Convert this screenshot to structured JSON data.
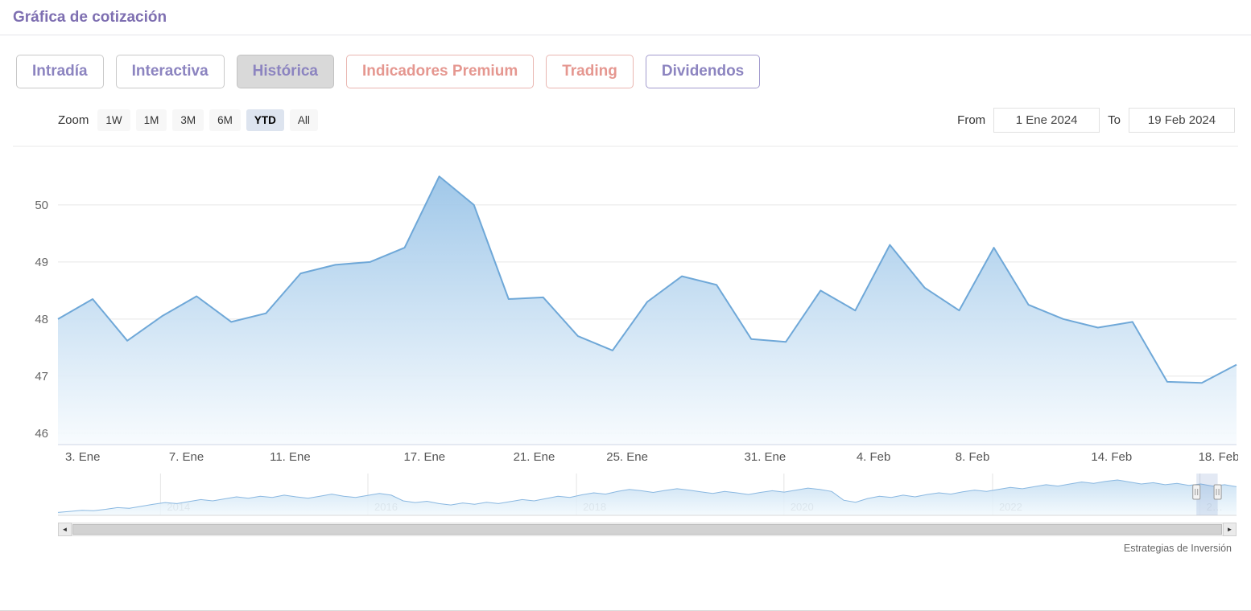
{
  "header": {
    "title": "Gráfica de cotización"
  },
  "tabs": [
    {
      "label": "Intradía",
      "active": false
    },
    {
      "label": "Interactiva",
      "active": false
    },
    {
      "label": "Histórica",
      "active": true
    },
    {
      "label": "Indicadores Premium",
      "active": false
    },
    {
      "label": "Trading",
      "active": false
    },
    {
      "label": "Dividendos",
      "active": false
    }
  ],
  "range_selector": {
    "zoom_label": "Zoom",
    "buttons": [
      {
        "label": "1W",
        "selected": false
      },
      {
        "label": "1M",
        "selected": false
      },
      {
        "label": "3M",
        "selected": false
      },
      {
        "label": "6M",
        "selected": false
      },
      {
        "label": "YTD",
        "selected": true
      },
      {
        "label": "All",
        "selected": false
      }
    ],
    "from_label": "From",
    "from_value": "1 Ene 2024",
    "to_label": "To",
    "to_value": "19 Feb 2024"
  },
  "chart_data": {
    "type": "area",
    "title": "",
    "xlabel": "",
    "ylabel": "",
    "x": [
      "2 Ene",
      "3 Ene",
      "4 Ene",
      "5 Ene",
      "8 Ene",
      "9 Ene",
      "10 Ene",
      "11 Ene",
      "12 Ene",
      "15 Ene",
      "16 Ene",
      "17 Ene",
      "18 Ene",
      "19 Ene",
      "22 Ene",
      "23 Ene",
      "24 Ene",
      "25 Ene",
      "26 Ene",
      "29 Ene",
      "30 Ene",
      "31 Ene",
      "1 Feb",
      "2 Feb",
      "5 Feb",
      "6 Feb",
      "7 Feb",
      "8 Feb",
      "9 Feb",
      "12 Feb",
      "13 Feb",
      "14 Feb",
      "15 Feb",
      "16 Feb",
      "19 Feb"
    ],
    "values": [
      48.0,
      48.35,
      47.62,
      48.05,
      48.4,
      47.95,
      48.1,
      48.8,
      48.95,
      49.0,
      49.25,
      50.5,
      50.0,
      48.35,
      48.38,
      47.7,
      47.45,
      48.3,
      48.75,
      48.6,
      47.65,
      47.6,
      48.5,
      48.15,
      49.3,
      48.55,
      48.15,
      49.25,
      48.25,
      48.0,
      47.85,
      47.95,
      46.9,
      46.88,
      47.2
    ],
    "ylim": [
      45.8,
      50.9
    ],
    "yticks": [
      46,
      47,
      48,
      49,
      50
    ],
    "xticks": [
      {
        "label": "3. Ene",
        "pos": 0.021
      },
      {
        "label": "7. Ene",
        "pos": 0.109
      },
      {
        "label": "11. Ene",
        "pos": 0.197
      },
      {
        "label": "17. Ene",
        "pos": 0.311
      },
      {
        "label": "21. Ene",
        "pos": 0.404
      },
      {
        "label": "25. Ene",
        "pos": 0.483
      },
      {
        "label": "31. Ene",
        "pos": 0.6
      },
      {
        "label": "4. Feb",
        "pos": 0.692
      },
      {
        "label": "8. Feb",
        "pos": 0.776
      },
      {
        "label": "14. Feb",
        "pos": 0.894
      },
      {
        "label": "18. Feb",
        "pos": 0.985
      }
    ],
    "grid": "horizontal-only",
    "legend": "none",
    "line_color": "#6fa8d8",
    "fill_top": "#93c0e6",
    "fill_bottom": "#f7fbfe"
  },
  "navigator_data": {
    "type": "area",
    "years": [
      {
        "label": "2014",
        "pos": 0.087
      },
      {
        "label": "2016",
        "pos": 0.263
      },
      {
        "label": "2018",
        "pos": 0.44
      },
      {
        "label": "2020",
        "pos": 0.616
      },
      {
        "label": "2022",
        "pos": 0.793
      },
      {
        "label": "2…",
        "pos": 0.969
      }
    ],
    "selected_range": [
      0.966,
      0.984
    ],
    "values": [
      0.04,
      0.07,
      0.1,
      0.09,
      0.13,
      0.18,
      0.16,
      0.22,
      0.28,
      0.33,
      0.3,
      0.36,
      0.42,
      0.38,
      0.44,
      0.5,
      0.46,
      0.52,
      0.48,
      0.55,
      0.5,
      0.46,
      0.52,
      0.58,
      0.52,
      0.48,
      0.54,
      0.6,
      0.55,
      0.38,
      0.33,
      0.37,
      0.3,
      0.26,
      0.32,
      0.28,
      0.34,
      0.3,
      0.36,
      0.42,
      0.38,
      0.45,
      0.52,
      0.48,
      0.56,
      0.62,
      0.58,
      0.66,
      0.72,
      0.68,
      0.63,
      0.69,
      0.74,
      0.7,
      0.65,
      0.6,
      0.66,
      0.62,
      0.57,
      0.63,
      0.68,
      0.64,
      0.7,
      0.76,
      0.72,
      0.66,
      0.4,
      0.34,
      0.45,
      0.52,
      0.48,
      0.55,
      0.5,
      0.57,
      0.62,
      0.58,
      0.65,
      0.7,
      0.66,
      0.72,
      0.78,
      0.74,
      0.8,
      0.86,
      0.82,
      0.88,
      0.94,
      0.9,
      0.96,
      1.0,
      0.94,
      0.88,
      0.92,
      0.86,
      0.9,
      0.84,
      0.88,
      0.82,
      0.86,
      0.8
    ],
    "line_color": "#8ab8e1",
    "fill_top": "#bcd9f0",
    "fill_bottom": "#f2f9fd"
  },
  "scrollbar": {
    "left_arrow": "◄",
    "right_arrow": "►"
  },
  "credit": "Estrategias de Inversión"
}
